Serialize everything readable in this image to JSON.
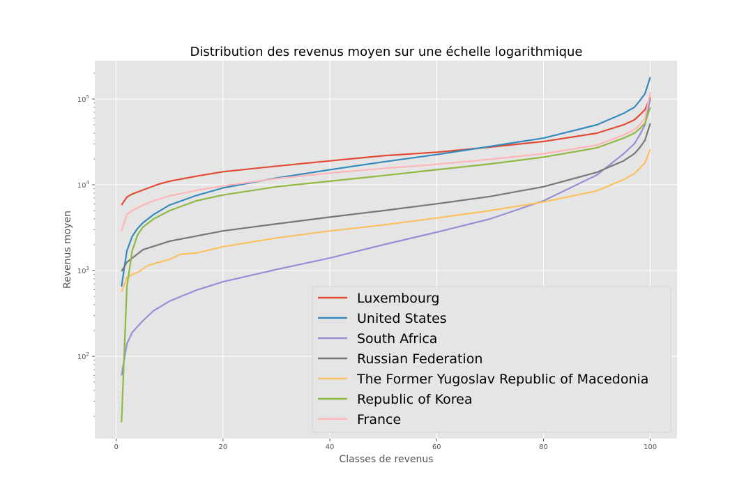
{
  "chart_data": {
    "type": "line",
    "title": "Distribution des revenus moyen sur une échelle logarithmique",
    "xlabel": "Classes de revenus",
    "ylabel": "Revenus moyen",
    "xlim": [
      -4,
      105
    ],
    "ylim": [
      11,
      280000
    ],
    "yscale": "log",
    "grid": true,
    "legend_position": "lower-right",
    "x_ticks": [
      0,
      20,
      40,
      60,
      80,
      100
    ],
    "y_ticks": [
      {
        "value": 100,
        "base": "10",
        "exp": "2"
      },
      {
        "value": 1000,
        "base": "10",
        "exp": "3"
      },
      {
        "value": 10000,
        "base": "10",
        "exp": "4"
      },
      {
        "value": 100000,
        "base": "10",
        "exp": "5"
      }
    ],
    "series": [
      {
        "name": "Luxembourg",
        "color": "#E24A33",
        "points": [
          [
            1,
            5800
          ],
          [
            2,
            7200
          ],
          [
            3,
            7800
          ],
          [
            5,
            8700
          ],
          [
            8,
            10200
          ],
          [
            10,
            11000
          ],
          [
            15,
            12600
          ],
          [
            20,
            14200
          ],
          [
            30,
            16500
          ],
          [
            40,
            19000
          ],
          [
            50,
            21800
          ],
          [
            60,
            24000
          ],
          [
            70,
            27500
          ],
          [
            80,
            32000
          ],
          [
            90,
            40000
          ],
          [
            95,
            50000
          ],
          [
            97,
            57000
          ],
          [
            98,
            65000
          ],
          [
            99,
            75000
          ],
          [
            100,
            105000
          ]
        ]
      },
      {
        "name": "United States",
        "color": "#348ABD",
        "points": [
          [
            1,
            650
          ],
          [
            2,
            1700
          ],
          [
            3,
            2500
          ],
          [
            4,
            3100
          ],
          [
            5,
            3600
          ],
          [
            7,
            4500
          ],
          [
            10,
            5800
          ],
          [
            15,
            7500
          ],
          [
            20,
            9200
          ],
          [
            30,
            12000
          ],
          [
            40,
            15000
          ],
          [
            50,
            18500
          ],
          [
            60,
            22500
          ],
          [
            70,
            28000
          ],
          [
            80,
            35000
          ],
          [
            90,
            50000
          ],
          [
            95,
            68000
          ],
          [
            97,
            80000
          ],
          [
            98,
            95000
          ],
          [
            99,
            115000
          ],
          [
            100,
            180000
          ]
        ]
      },
      {
        "name": "South Africa",
        "color": "#988ED5",
        "points": [
          [
            1,
            60
          ],
          [
            2,
            140
          ],
          [
            3,
            190
          ],
          [
            5,
            260
          ],
          [
            7,
            340
          ],
          [
            10,
            440
          ],
          [
            15,
            590
          ],
          [
            20,
            740
          ],
          [
            30,
            1030
          ],
          [
            40,
            1400
          ],
          [
            50,
            2000
          ],
          [
            60,
            2800
          ],
          [
            70,
            4000
          ],
          [
            80,
            6500
          ],
          [
            90,
            13000
          ],
          [
            95,
            23000
          ],
          [
            97,
            30000
          ],
          [
            98,
            38000
          ],
          [
            99,
            50000
          ],
          [
            100,
            100000
          ]
        ]
      },
      {
        "name": "Russian Federation",
        "color": "#777777",
        "points": [
          [
            1,
            980
          ],
          [
            2,
            1250
          ],
          [
            5,
            1750
          ],
          [
            10,
            2200
          ],
          [
            20,
            2900
          ],
          [
            30,
            3500
          ],
          [
            40,
            4200
          ],
          [
            50,
            5000
          ],
          [
            60,
            6000
          ],
          [
            70,
            7300
          ],
          [
            80,
            9500
          ],
          [
            90,
            14000
          ],
          [
            95,
            19000
          ],
          [
            97,
            23000
          ],
          [
            98,
            27000
          ],
          [
            99,
            33000
          ],
          [
            100,
            52000
          ]
        ]
      },
      {
        "name": "The Former Yugoslav Republic of Macedonia",
        "color": "#FBC15E",
        "points": [
          [
            1,
            570
          ],
          [
            2,
            830
          ],
          [
            3,
            900
          ],
          [
            4,
            950
          ],
          [
            6,
            1150
          ],
          [
            10,
            1350
          ],
          [
            12,
            1550
          ],
          [
            15,
            1600
          ],
          [
            20,
            1900
          ],
          [
            30,
            2400
          ],
          [
            40,
            2900
          ],
          [
            50,
            3400
          ],
          [
            60,
            4100
          ],
          [
            70,
            5000
          ],
          [
            80,
            6300
          ],
          [
            90,
            8500
          ],
          [
            95,
            11500
          ],
          [
            97,
            13500
          ],
          [
            98,
            15500
          ],
          [
            99,
            18000
          ],
          [
            100,
            26000
          ]
        ]
      },
      {
        "name": "Republic of Korea",
        "color": "#8EBA42",
        "points": [
          [
            1,
            17
          ],
          [
            2,
            650
          ],
          [
            3,
            1700
          ],
          [
            4,
            2600
          ],
          [
            5,
            3200
          ],
          [
            7,
            4000
          ],
          [
            10,
            5000
          ],
          [
            15,
            6500
          ],
          [
            20,
            7600
          ],
          [
            30,
            9500
          ],
          [
            40,
            11000
          ],
          [
            50,
            12800
          ],
          [
            60,
            15000
          ],
          [
            70,
            17500
          ],
          [
            80,
            21000
          ],
          [
            90,
            27000
          ],
          [
            95,
            35000
          ],
          [
            97,
            40000
          ],
          [
            98,
            45000
          ],
          [
            99,
            52000
          ],
          [
            100,
            80000
          ]
        ]
      },
      {
        "name": "France",
        "color": "#FFB5B8",
        "points": [
          [
            1,
            2900
          ],
          [
            2,
            4500
          ],
          [
            3,
            5000
          ],
          [
            5,
            5800
          ],
          [
            7,
            6500
          ],
          [
            10,
            7400
          ],
          [
            15,
            8600
          ],
          [
            20,
            9700
          ],
          [
            30,
            11800
          ],
          [
            40,
            13700
          ],
          [
            50,
            15500
          ],
          [
            60,
            17300
          ],
          [
            70,
            19800
          ],
          [
            80,
            23000
          ],
          [
            90,
            29000
          ],
          [
            95,
            38000
          ],
          [
            97,
            44000
          ],
          [
            98,
            50000
          ],
          [
            99,
            60000
          ],
          [
            100,
            120000
          ]
        ]
      }
    ]
  }
}
